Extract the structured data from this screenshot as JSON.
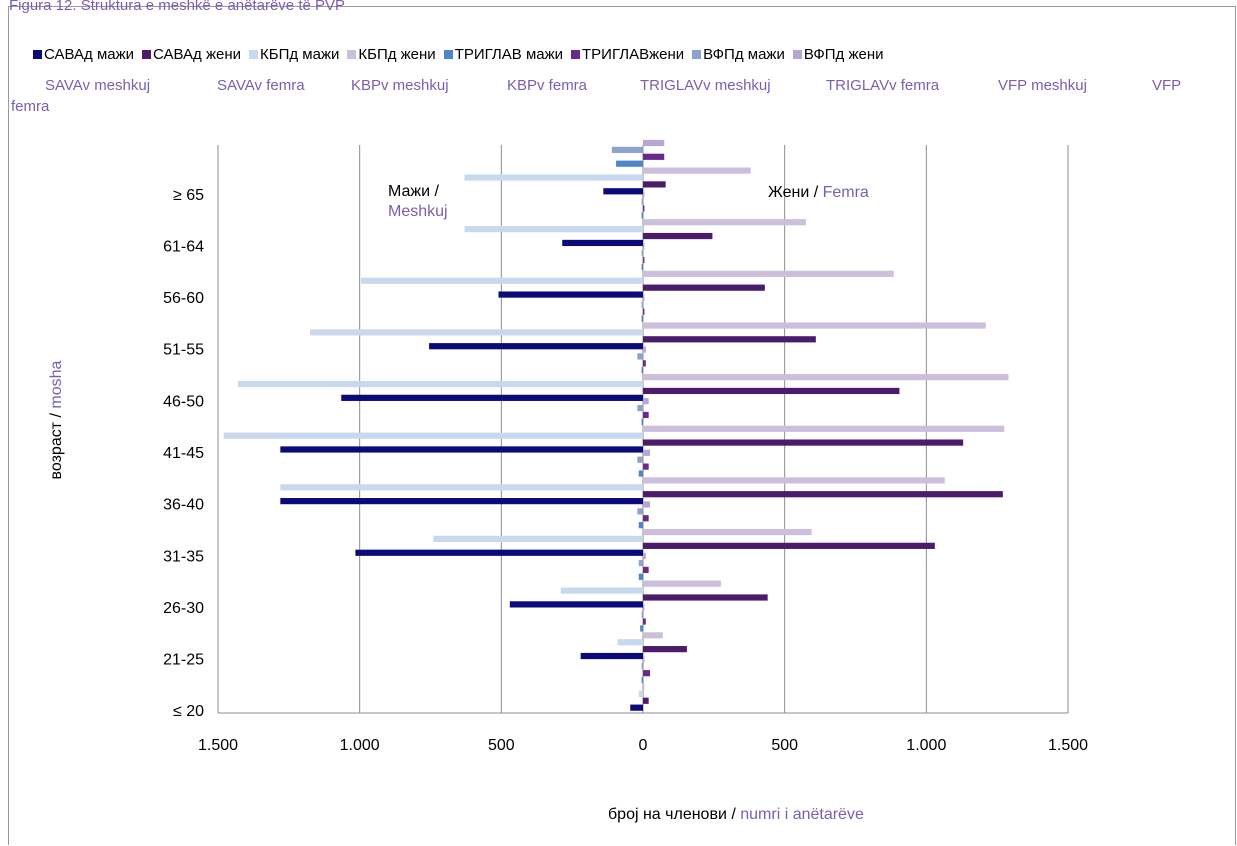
{
  "figure_caption": "Figura 12. Struktura e meshkë e anëtarëve të PVP",
  "chart_data": {
    "type": "bar",
    "orientation": "horizontal",
    "layout": "population-pyramid",
    "categories": [
      "≥ 65",
      "61-64",
      "56-60",
      "51-55",
      "46-50",
      "41-45",
      "36-40",
      "31-35",
      "26-30",
      "21-25",
      "≤ 20"
    ],
    "series": [
      {
        "name": "САВАд мажи",
        "side": "male",
        "color": "#0a0a7a",
        "values": [
          140,
          285,
          510,
          755,
          1065,
          1280,
          1280,
          1015,
          470,
          220,
          45
        ]
      },
      {
        "name": "САВАд жени",
        "side": "female",
        "color": "#4b1c6b",
        "values": [
          80,
          245,
          430,
          610,
          905,
          1130,
          1270,
          1030,
          440,
          155,
          20
        ]
      },
      {
        "name": "КБПд мажи",
        "side": "male",
        "color": "#c8d9ef",
        "values": [
          630,
          630,
          995,
          1175,
          1430,
          1480,
          1280,
          740,
          290,
          90,
          15
        ]
      },
      {
        "name": "КБПд жени",
        "side": "female",
        "color": "#cbbfdc",
        "values": [
          380,
          575,
          885,
          1210,
          1290,
          1275,
          1065,
          595,
          275,
          70,
          5
        ]
      },
      {
        "name": "ТРИГЛАВ мажи",
        "side": "male",
        "color": "#4a86c8",
        "values": [
          95,
          5,
          5,
          5,
          5,
          5,
          15,
          15,
          15,
          10,
          5
        ]
      },
      {
        "name": "ТРИГЛАВжени",
        "side": "female",
        "color": "#6a2a8c",
        "values": [
          75,
          5,
          5,
          5,
          10,
          20,
          20,
          20,
          20,
          10,
          25
        ]
      },
      {
        "name": "ВФПд мажи",
        "side": "male",
        "color": "#8ea3cc",
        "values": [
          110,
          5,
          5,
          5,
          20,
          20,
          20,
          20,
          15,
          5,
          5
        ]
      },
      {
        "name": "ВФПд жени",
        "side": "female",
        "color": "#b7a6d2",
        "values": [
          75,
          5,
          5,
          5,
          10,
          20,
          25,
          25,
          10,
          5,
          5
        ]
      }
    ],
    "legend_albanian": [
      "SAVAv meshkuj",
      "SAVAv femra",
      "KBPv meshkuj",
      "KBPv femra",
      "TRIGLAVv meshkuj",
      "TRIGLAVv femra",
      "VFP meshkuj",
      "VFP"
    ],
    "legend_albanian_wrap": "femra",
    "xaxis": {
      "range": [
        -1500,
        1500
      ],
      "ticks": [
        -1500,
        -1000,
        -500,
        0,
        500,
        1000,
        1500
      ],
      "tick_labels": [
        "1.500",
        "1.000",
        "500",
        "0",
        "500",
        "1.000",
        "1.500"
      ]
    },
    "xlabel": {
      "mk": "број на членови",
      "sep": " / ",
      "sq": "numri i anëtarëve"
    },
    "ylabel": {
      "mk": "возраст",
      "sep": " / ",
      "sq": "mosha"
    },
    "annotation_male": {
      "mk": "Мажи /",
      "sq": "Meshkuj"
    },
    "annotation_female": {
      "mk": "Жени",
      "sep": " / ",
      "sq": "Femra"
    },
    "grid": "vertical",
    "legend_position": "top"
  }
}
